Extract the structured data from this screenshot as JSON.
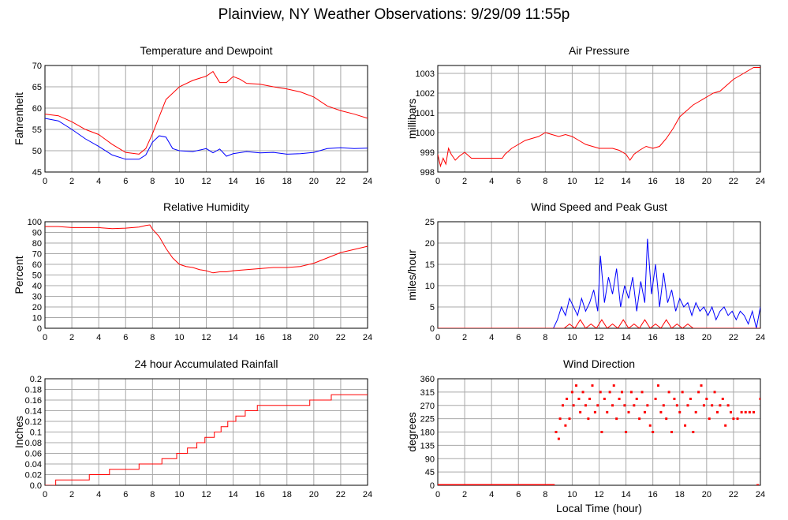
{
  "title": "Plainview, NY Weather Observations: 9/29/09 11:55p",
  "colors": {
    "red": "#ff0000",
    "blue": "#0000ff",
    "grid": "#a8a8a8",
    "axis": "#000000"
  },
  "chart_data": [
    {
      "id": "temp",
      "type": "line",
      "title": "Temperature and Dewpoint",
      "xlabel": "",
      "ylabel": "Fahrenheit",
      "xlim": [
        0,
        24
      ],
      "ylim": [
        45,
        70
      ],
      "xticks": [
        0,
        2,
        4,
        6,
        8,
        10,
        12,
        14,
        16,
        18,
        20,
        22,
        24
      ],
      "yticks": [
        45,
        50,
        55,
        60,
        65,
        70
      ],
      "series": [
        {
          "color": "#ff0000",
          "x": [
            0,
            1,
            2,
            3,
            4,
            5,
            6,
            7,
            7.5,
            8,
            8.5,
            9,
            9.5,
            10,
            11,
            12,
            12.5,
            13,
            13.5,
            14,
            14.5,
            15,
            16,
            17,
            18,
            19,
            20,
            21,
            22,
            23,
            24
          ],
          "y": [
            58.6,
            58.2,
            56.8,
            55,
            53.8,
            51.5,
            49.6,
            49.2,
            50.5,
            54,
            58,
            62,
            63.5,
            65,
            66.5,
            67.5,
            68.6,
            66,
            66,
            67.4,
            66.8,
            65.8,
            65.6,
            65,
            64.5,
            63.8,
            62.6,
            60.5,
            59.4,
            58.6,
            57.6
          ]
        },
        {
          "color": "#0000ff",
          "x": [
            0,
            1,
            2,
            3,
            4,
            5,
            6,
            7,
            7.5,
            8,
            8.5,
            9,
            9.5,
            10,
            11,
            12,
            12.5,
            13,
            13.5,
            14,
            15,
            16,
            17,
            18,
            19,
            20,
            21,
            22,
            23,
            24
          ],
          "y": [
            57.6,
            57,
            55,
            52.8,
            51,
            49,
            48,
            48,
            49,
            52,
            53.5,
            53.2,
            50.5,
            50,
            49.8,
            50.5,
            49.5,
            50.4,
            48.7,
            49.3,
            49.8,
            49.5,
            49.6,
            49.2,
            49.3,
            49.6,
            50.5,
            50.7,
            50.5,
            50.6
          ]
        }
      ]
    },
    {
      "id": "pressure",
      "type": "line",
      "title": "Air Pressure",
      "xlabel": "",
      "ylabel": "millibars",
      "xlim": [
        0,
        24
      ],
      "ylim": [
        998,
        1003.4
      ],
      "xticks": [
        0,
        2,
        4,
        6,
        8,
        10,
        12,
        14,
        16,
        18,
        20,
        22,
        24
      ],
      "yticks": [
        998,
        999,
        1000,
        1001,
        1002,
        1003
      ],
      "series": [
        {
          "color": "#ff0000",
          "x": [
            0,
            0.2,
            0.4,
            0.6,
            0.8,
            1,
            1.3,
            1.6,
            2,
            2.5,
            3,
            4,
            4.8,
            5,
            5.5,
            6,
            6.5,
            7,
            7.5,
            8,
            8.5,
            9,
            9.5,
            10,
            10.5,
            11,
            11.5,
            12,
            12.5,
            13,
            13.5,
            14,
            14.3,
            14.6,
            15,
            15.5,
            16,
            16.5,
            17,
            17.5,
            18,
            18.5,
            19,
            19.5,
            20,
            20.5,
            21,
            21.5,
            22,
            22.5,
            23,
            23.5,
            24
          ],
          "y": [
            998.9,
            998.3,
            998.7,
            998.4,
            999.2,
            998.9,
            998.6,
            998.8,
            999.0,
            998.7,
            998.7,
            998.7,
            998.7,
            998.9,
            999.2,
            999.4,
            999.6,
            999.7,
            999.8,
            1000.0,
            999.9,
            999.8,
            999.9,
            999.8,
            999.6,
            999.4,
            999.3,
            999.2,
            999.2,
            999.2,
            999.1,
            998.9,
            998.6,
            998.9,
            999.1,
            999.3,
            999.2,
            999.3,
            999.7,
            1000.2,
            1000.8,
            1001.1,
            1001.4,
            1001.6,
            1001.8,
            1002.0,
            1002.1,
            1002.4,
            1002.7,
            1002.9,
            1003.1,
            1003.3,
            1003.3
          ]
        }
      ]
    },
    {
      "id": "humidity",
      "type": "line",
      "title": "Relative Humidity",
      "xlabel": "",
      "ylabel": "Percent",
      "xlim": [
        0,
        24
      ],
      "ylim": [
        0,
        100
      ],
      "xticks": [
        0,
        2,
        4,
        6,
        8,
        10,
        12,
        14,
        16,
        18,
        20,
        22,
        24
      ],
      "yticks": [
        0,
        10,
        20,
        30,
        40,
        50,
        60,
        70,
        80,
        90,
        100
      ],
      "series": [
        {
          "color": "#ff0000",
          "x": [
            0,
            1,
            2,
            3,
            4,
            5,
            6,
            7,
            7.5,
            7.8,
            8,
            8.5,
            9,
            9.5,
            10,
            10.5,
            11,
            11.5,
            12,
            12.5,
            13,
            13.5,
            14,
            15,
            16,
            17,
            18,
            19,
            20,
            21,
            22,
            23,
            24
          ],
          "y": [
            95.5,
            95.5,
            94.5,
            94.5,
            94.5,
            93.5,
            94,
            95,
            96.5,
            97,
            93,
            86,
            75,
            66,
            60,
            58,
            57,
            55,
            54,
            52,
            53,
            53,
            54,
            55,
            56,
            57,
            57,
            58,
            61,
            66,
            71,
            74,
            77
          ]
        }
      ]
    },
    {
      "id": "wind",
      "type": "line",
      "title": "Wind Speed and Peak Gust",
      "xlabel": "",
      "ylabel": "miles/hour",
      "xlim": [
        0,
        24
      ],
      "ylim": [
        0,
        25
      ],
      "xticks": [
        0,
        2,
        4,
        6,
        8,
        10,
        12,
        14,
        16,
        18,
        20,
        22,
        24
      ],
      "yticks": [
        0,
        5,
        10,
        15,
        20,
        25
      ],
      "series": [
        {
          "color": "#0000ff",
          "x": [
            0,
            8.6,
            8.9,
            9.2,
            9.5,
            9.8,
            10.1,
            10.4,
            10.7,
            11,
            11.3,
            11.6,
            11.9,
            12.1,
            12.4,
            12.7,
            13,
            13.3,
            13.6,
            13.9,
            14.2,
            14.5,
            14.8,
            15.1,
            15.4,
            15.6,
            15.9,
            16.2,
            16.5,
            16.8,
            17.1,
            17.4,
            17.7,
            18,
            18.3,
            18.6,
            18.9,
            19.2,
            19.5,
            19.8,
            20.1,
            20.4,
            20.7,
            21,
            21.3,
            21.6,
            21.9,
            22.2,
            22.5,
            22.8,
            23.1,
            23.4,
            23.7,
            24
          ],
          "y": [
            0,
            0,
            2,
            5,
            3,
            7,
            5,
            3,
            7,
            4,
            6,
            9,
            4,
            17,
            6,
            12,
            8,
            14,
            5,
            10,
            7,
            12,
            4,
            11,
            6,
            21,
            8,
            15,
            5,
            13,
            6,
            9,
            4,
            7,
            5,
            6,
            3,
            6,
            4,
            5,
            3,
            5,
            2,
            4,
            5,
            3,
            4,
            2,
            4,
            3,
            1,
            4,
            0,
            5
          ]
        },
        {
          "color": "#ff0000",
          "x": [
            0,
            9,
            9.4,
            9.8,
            10.2,
            10.6,
            11,
            11.4,
            11.8,
            12.2,
            12.6,
            13,
            13.4,
            13.8,
            14.2,
            14.6,
            15,
            15.4,
            15.8,
            16.2,
            16.6,
            17,
            17.4,
            17.8,
            18.2,
            18.6,
            19,
            20,
            24
          ],
          "y": [
            0,
            0,
            0,
            1,
            0,
            2,
            0,
            1,
            0,
            2,
            0,
            1,
            0,
            2,
            0,
            1,
            0,
            2,
            0,
            1,
            0,
            2,
            0,
            1,
            0,
            1,
            0,
            0,
            0
          ]
        }
      ]
    },
    {
      "id": "rain",
      "type": "line",
      "title": "24 hour Accumulated Rainfall",
      "xlabel": "",
      "ylabel": "Inches",
      "xlim": [
        0,
        24
      ],
      "ylim": [
        0,
        0.2
      ],
      "xticks": [
        0,
        2,
        4,
        6,
        8,
        10,
        12,
        14,
        16,
        18,
        20,
        22,
        24
      ],
      "yticks": [
        0.0,
        0.02,
        0.04,
        0.06,
        0.08,
        0.1,
        0.12,
        0.14,
        0.16,
        0.18,
        0.2
      ],
      "ytick_labels": [
        "0.0",
        "0.02",
        "0.04",
        "0.06",
        "0.08",
        "0.1",
        "0.12",
        "0.14",
        "0.16",
        "0.18",
        "0.2"
      ],
      "step": true,
      "series": [
        {
          "color": "#ff0000",
          "x": [
            0,
            0.8,
            3.3,
            4.8,
            7,
            8.7,
            9.8,
            10.6,
            11.3,
            11.9,
            12.6,
            13.1,
            13.6,
            14.2,
            14.9,
            15.8,
            16.6,
            17.5,
            19.7,
            21.3,
            24
          ],
          "y": [
            0,
            0.01,
            0.02,
            0.03,
            0.04,
            0.05,
            0.06,
            0.07,
            0.08,
            0.09,
            0.1,
            0.11,
            0.12,
            0.13,
            0.14,
            0.15,
            0.15,
            0.15,
            0.16,
            0.17,
            0.17
          ]
        }
      ]
    },
    {
      "id": "direction",
      "type": "scatter",
      "title": "Wind Direction",
      "xlabel": "Local Time (hour)",
      "ylabel": "degrees",
      "xlim": [
        0,
        24
      ],
      "ylim": [
        0,
        360
      ],
      "xticks": [
        0,
        2,
        4,
        6,
        8,
        10,
        12,
        14,
        16,
        18,
        20,
        22,
        24
      ],
      "yticks": [
        0,
        45,
        90,
        135,
        180,
        225,
        270,
        315,
        360
      ],
      "baseline": {
        "x": [
          0,
          8.7
        ],
        "y": 0
      },
      "series": [
        {
          "color": "#ff0000",
          "x": [
            8.8,
            9.0,
            9.1,
            9.3,
            9.5,
            9.6,
            9.8,
            10.0,
            10.1,
            10.3,
            10.5,
            10.6,
            10.8,
            11.0,
            11.2,
            11.3,
            11.5,
            11.7,
            11.9,
            12.1,
            12.2,
            12.4,
            12.6,
            12.8,
            13.0,
            13.1,
            13.3,
            13.5,
            13.7,
            13.9,
            14.0,
            14.2,
            14.4,
            14.6,
            14.8,
            15.0,
            15.2,
            15.4,
            15.6,
            15.8,
            16.0,
            16.2,
            16.4,
            16.6,
            16.8,
            17.0,
            17.2,
            17.4,
            17.6,
            17.8,
            18.0,
            18.2,
            18.4,
            18.6,
            18.8,
            19.0,
            19.2,
            19.4,
            19.6,
            19.8,
            20.0,
            20.2,
            20.4,
            20.6,
            20.8,
            21.0,
            21.2,
            21.4,
            21.6,
            21.8,
            22.0,
            22.3,
            22.6,
            22.9,
            23.2,
            23.5,
            23.8,
            24.0
          ],
          "y": [
            180,
            157,
            225,
            270,
            202,
            292,
            225,
            315,
            270,
            337,
            292,
            247,
            315,
            270,
            225,
            292,
            337,
            247,
            270,
            315,
            180,
            292,
            247,
            315,
            270,
            337,
            225,
            292,
            315,
            270,
            180,
            247,
            315,
            270,
            292,
            225,
            315,
            247,
            270,
            202,
            180,
            292,
            337,
            247,
            270,
            225,
            315,
            180,
            292,
            270,
            247,
            315,
            202,
            270,
            292,
            180,
            247,
            315,
            337,
            270,
            292,
            225,
            270,
            315,
            247,
            270,
            292,
            202,
            270,
            247,
            225,
            225,
            247,
            247,
            247,
            247,
            0,
            292
          ]
        }
      ]
    }
  ]
}
